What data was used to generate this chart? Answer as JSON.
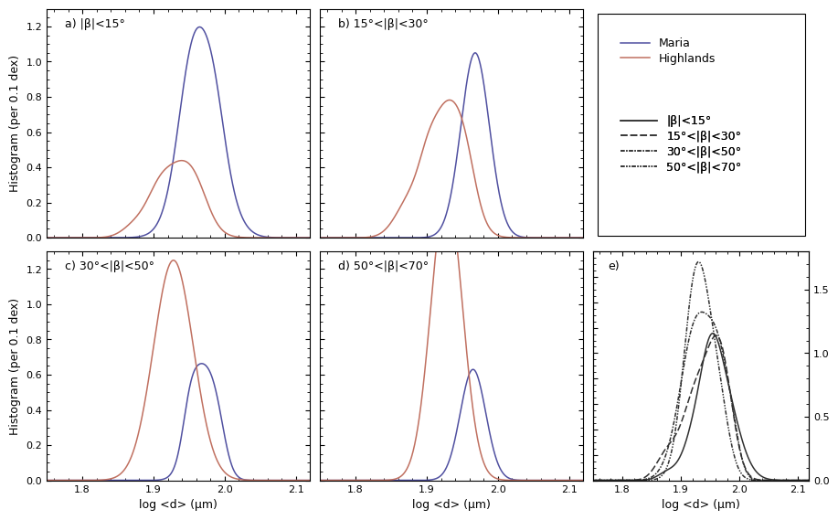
{
  "xlim": [
    1.75,
    2.12
  ],
  "ylim_main": [
    0.0,
    1.3
  ],
  "ylim_e": [
    0.0,
    1.8
  ],
  "xlabel": "log <d> (μm)",
  "ylabel": "Histogram (per 0.1 dex)",
  "panel_labels": [
    "a) |β|<15°",
    "b) 15°<|β|<30°",
    "c) 30°<|β|<50°",
    "d) 50°<|β|<70°",
    "e)"
  ],
  "maria_color": "#5050a0",
  "highlands_color": "#c07060",
  "legend_maria": "Maria",
  "legend_highlands": "Highlands",
  "legend_lat_labels": [
    "|β|<15°",
    "15°<|β|<30°",
    "30°<|β|<50°",
    "50°<|β|<70°"
  ],
  "xticks": [
    1.8,
    1.9,
    2.0,
    2.1
  ],
  "yticks_main": [
    0.0,
    0.2,
    0.4,
    0.6,
    0.8,
    1.0,
    1.2
  ],
  "yticks_e": [
    0.0,
    0.5,
    1.0,
    1.5
  ]
}
